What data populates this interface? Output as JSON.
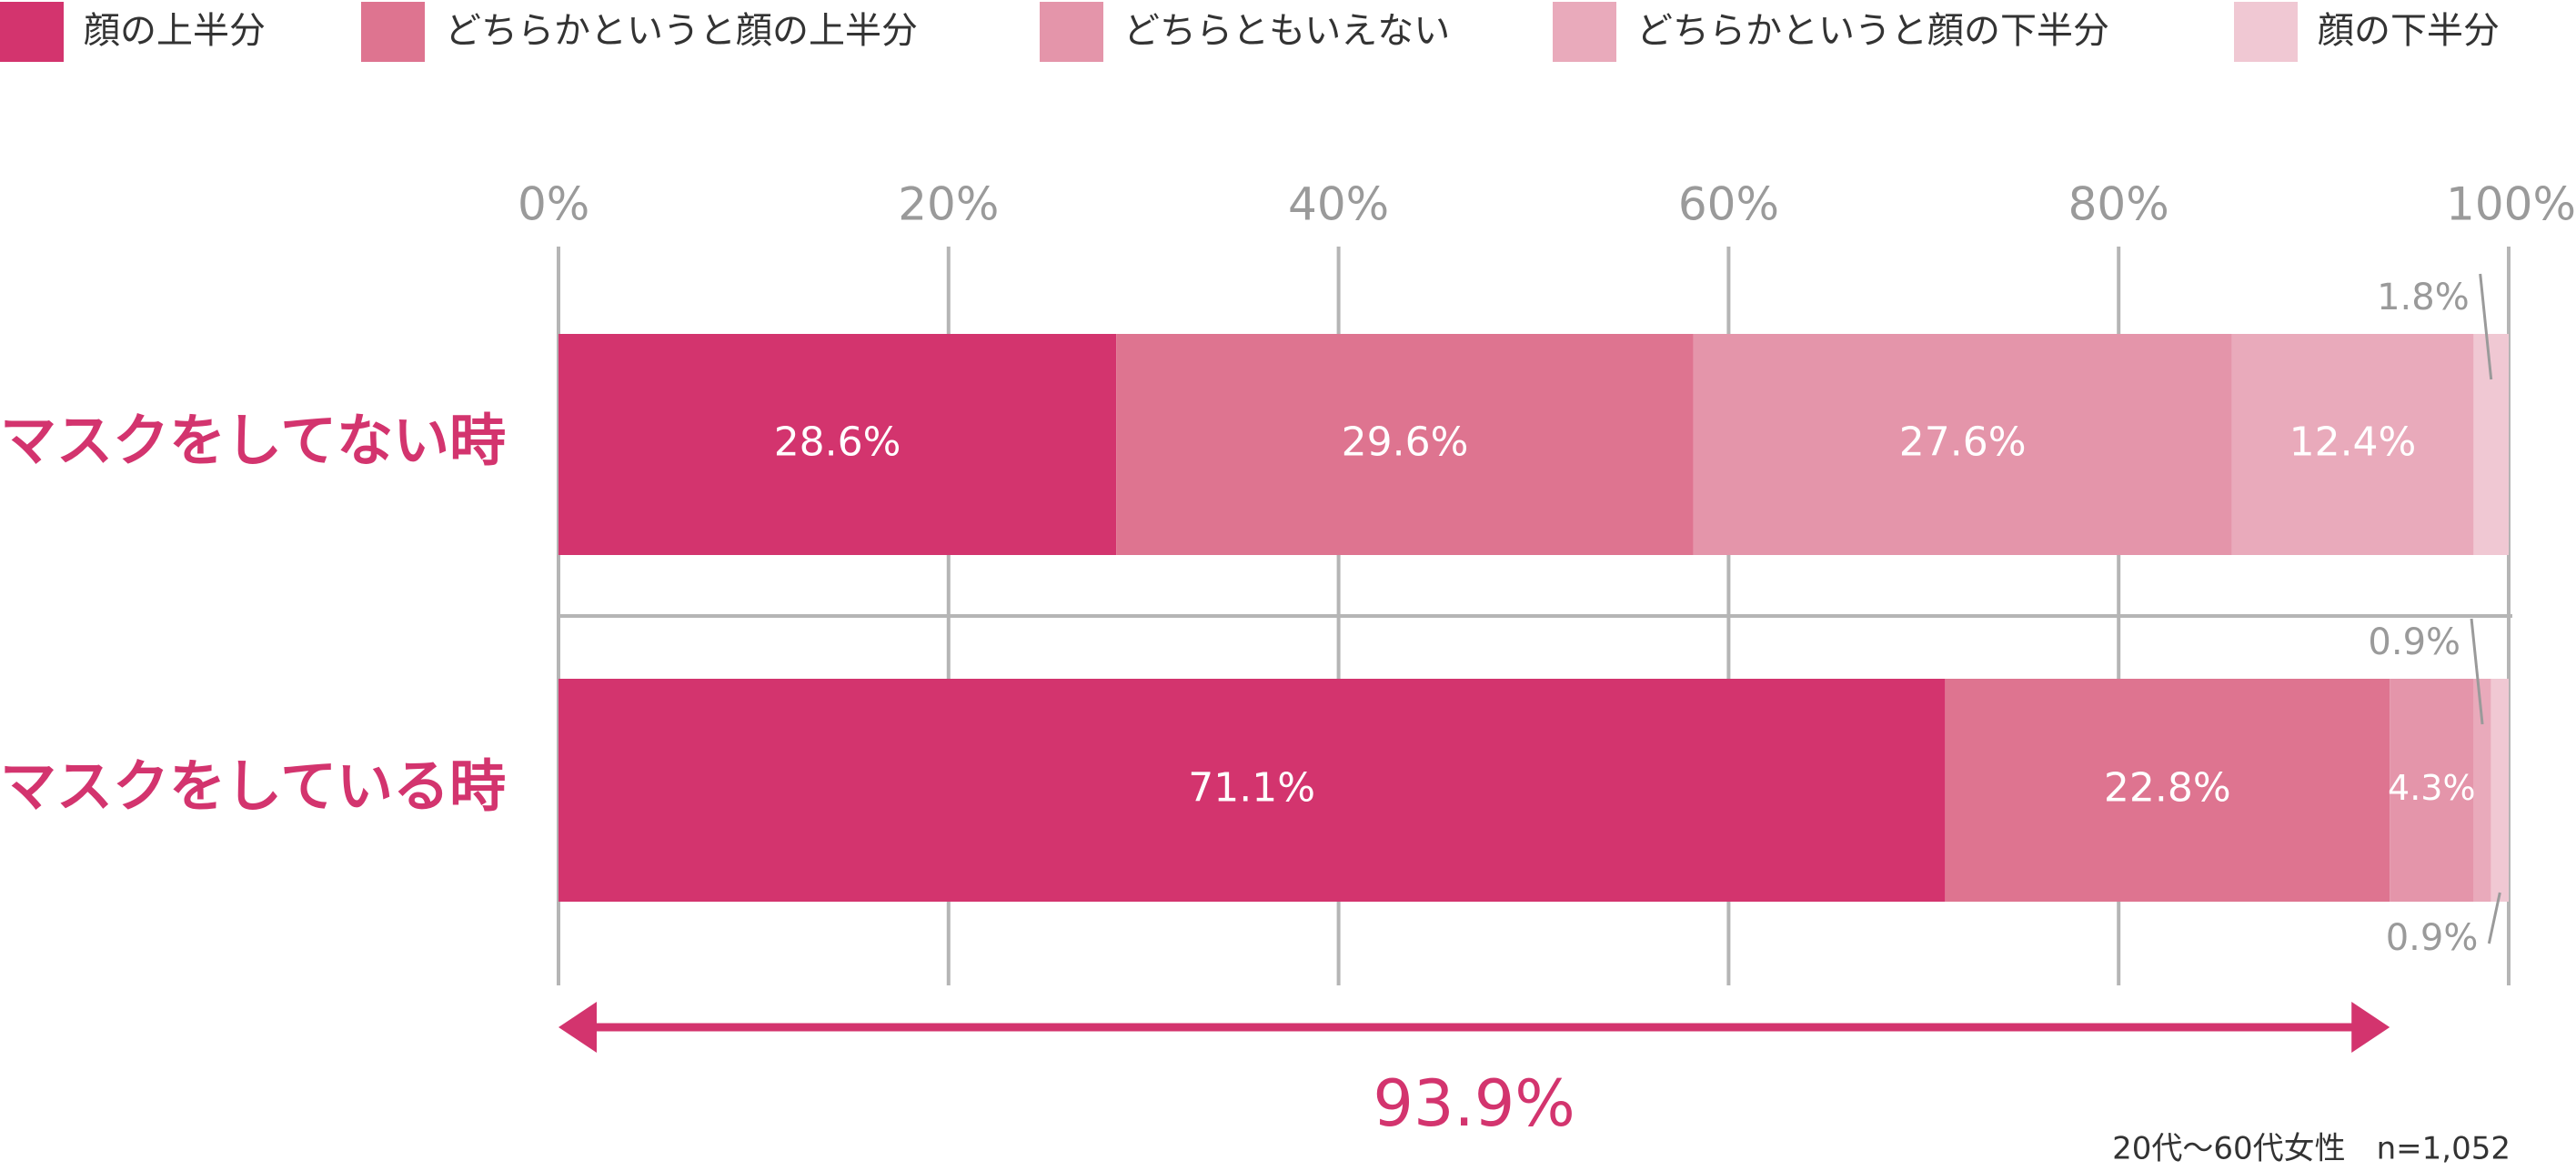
{
  "chart_data": {
    "type": "stacked-bar-horizontal",
    "categories": [
      "マスクをしてない時",
      "マスクをしている時"
    ],
    "series": [
      {
        "name": "顔の上半分",
        "color": "#d3346e",
        "values": [
          28.6,
          71.1
        ],
        "value_labels": [
          "28.6%",
          "71.1%"
        ]
      },
      {
        "name": "どちらかというと顔の上半分",
        "color": "#de7490",
        "values": [
          29.6,
          22.8
        ],
        "value_labels": [
          "29.6%",
          "22.8%"
        ]
      },
      {
        "name": "どちらともいえない",
        "color": "#e495aa",
        "values": [
          27.6,
          4.3
        ],
        "value_labels": [
          "27.6%",
          "4.3%"
        ]
      },
      {
        "name": "どちらかというと顔の下半分",
        "color": "#e9aabb",
        "values": [
          12.4,
          0.9
        ],
        "value_labels": [
          "12.4%",
          "0.9%"
        ]
      },
      {
        "name": "顔の下半分",
        "color": "#f0c8d3",
        "values": [
          1.8,
          0.9
        ],
        "value_labels": [
          "1.8%",
          "0.9%"
        ]
      }
    ],
    "xlim": [
      0,
      100
    ],
    "xticks": [
      {
        "value": 0,
        "label": "0%"
      },
      {
        "value": 20,
        "label": "20%"
      },
      {
        "value": 40,
        "label": "40%"
      },
      {
        "value": 60,
        "label": "60%"
      },
      {
        "value": 80,
        "label": "80%"
      },
      {
        "value": 100,
        "label": "100%"
      }
    ],
    "grid": true,
    "legend": "top",
    "annotation": {
      "value": 93.9,
      "label": "93.9%"
    },
    "note": "20代〜60代女性　n=1,052"
  }
}
